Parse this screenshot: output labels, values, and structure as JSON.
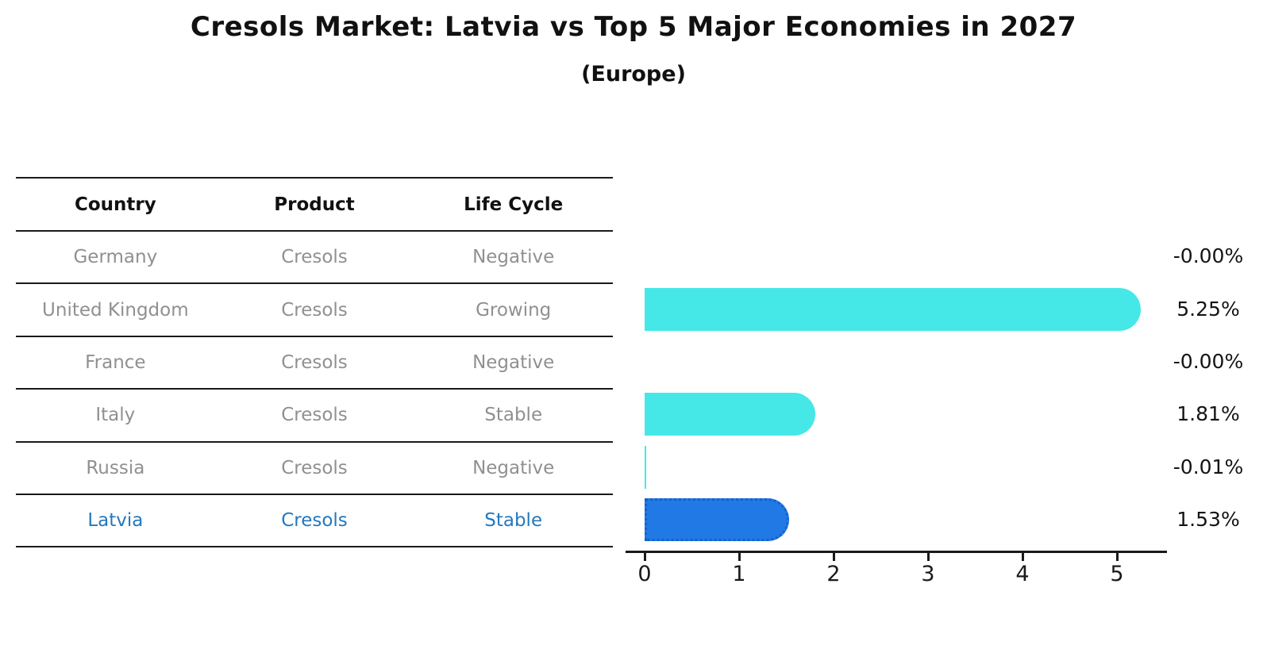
{
  "title": "Cresols Market: Latvia vs Top 5 Major Economies in 2027",
  "subtitle": "(Europe)",
  "table": {
    "headers": [
      "Country",
      "Product",
      "Life Cycle"
    ],
    "rows": [
      {
        "country": "Germany",
        "product": "Cresols",
        "life_cycle": "Negative",
        "highlight": false
      },
      {
        "country": "United Kingdom",
        "product": "Cresols",
        "life_cycle": "Growing",
        "highlight": false
      },
      {
        "country": "France",
        "product": "Cresols",
        "life_cycle": "Negative",
        "highlight": false
      },
      {
        "country": "Italy",
        "product": "Cresols",
        "life_cycle": "Stable",
        "highlight": false
      },
      {
        "country": "Russia",
        "product": "Cresols",
        "life_cycle": "Negative",
        "highlight": false
      },
      {
        "country": "Latvia",
        "product": "Cresols",
        "life_cycle": "Stable",
        "highlight": true
      }
    ]
  },
  "chart_data": {
    "type": "bar",
    "orientation": "horizontal",
    "title": "Cresols Market: Latvia vs Top 5 Major Economies in 2027",
    "subtitle": "(Europe)",
    "categories": [
      "Germany",
      "United Kingdom",
      "France",
      "Italy",
      "Russia",
      "Latvia"
    ],
    "values": [
      -0.0,
      5.25,
      -0.0,
      1.81,
      -0.01,
      1.53
    ],
    "value_labels": [
      "-0.00%",
      "5.25%",
      "-0.00%",
      "1.81%",
      "-0.01%",
      "1.53%"
    ],
    "xlim": [
      0,
      5.53
    ],
    "xticks": [
      0,
      1,
      2,
      3,
      4,
      5
    ],
    "xtick_labels": [
      "0",
      "1",
      "2",
      "3",
      "4",
      "5"
    ],
    "grid": false,
    "legend": "none",
    "bar_color": "#45e8e6",
    "highlight_bar_color": "#2079e4",
    "highlight_bar_edge_color": "#1660cf",
    "highlight_index": 5
  },
  "colors": {
    "header_text": "#111111",
    "table_text": "#909090",
    "highlight_text": "#2478bf",
    "axis": "#1a1a1a",
    "value_label_text": "#141414"
  }
}
